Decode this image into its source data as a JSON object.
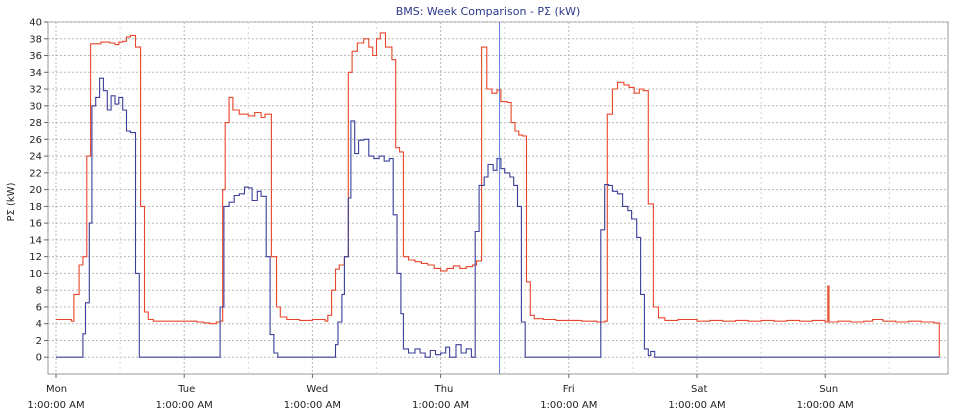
{
  "chart_data": {
    "type": "line",
    "title": "BMS: Week Comparison - PΣ (kW)",
    "ylabel": "PΣ (kW)",
    "xlabel": "",
    "ylim": [
      -2,
      40
    ],
    "yticks": [
      0,
      2,
      4,
      6,
      8,
      10,
      12,
      14,
      16,
      18,
      20,
      22,
      24,
      26,
      28,
      30,
      32,
      34,
      36,
      38,
      40
    ],
    "xlim": [
      0,
      7
    ],
    "xtick_positions": [
      0,
      1,
      2,
      3,
      4,
      5,
      6
    ],
    "xtick_labels": [
      {
        "day": "Mon",
        "time": "1:00:00 AM"
      },
      {
        "day": "Tue",
        "time": "1:00:00 AM"
      },
      {
        "day": "Wed",
        "time": "1:00:00 AM"
      },
      {
        "day": "Thu",
        "time": "1:00:00 AM"
      },
      {
        "day": "Fri",
        "time": "1:00:00 AM"
      },
      {
        "day": "Sat",
        "time": "1:00:00 AM"
      },
      {
        "day": "Sun",
        "time": "1:00:00 AM"
      }
    ],
    "grid": true,
    "cursor_x": 3.46,
    "series": [
      {
        "color": "#e8462a",
        "step": true,
        "points": [
          [
            0,
            4.5
          ],
          [
            0.12,
            4.3
          ],
          [
            0.14,
            7.5
          ],
          [
            0.18,
            11
          ],
          [
            0.21,
            12
          ],
          [
            0.24,
            24
          ],
          [
            0.27,
            37.4
          ],
          [
            0.35,
            37.6
          ],
          [
            0.42,
            37.5
          ],
          [
            0.46,
            37.3
          ],
          [
            0.49,
            37.6
          ],
          [
            0.52,
            37.7
          ],
          [
            0.55,
            38.2
          ],
          [
            0.58,
            38.4
          ],
          [
            0.62,
            37
          ],
          [
            0.66,
            18
          ],
          [
            0.69,
            5.4
          ],
          [
            0.72,
            4.5
          ],
          [
            0.76,
            4.3
          ],
          [
            0.9,
            4.3
          ],
          [
            1.1,
            4.2
          ],
          [
            1.15,
            4.1
          ],
          [
            1.2,
            4.0
          ],
          [
            1.25,
            4.2
          ],
          [
            1.28,
            4.3
          ],
          [
            1.3,
            20
          ],
          [
            1.32,
            28
          ],
          [
            1.35,
            31
          ],
          [
            1.38,
            29.5
          ],
          [
            1.43,
            29
          ],
          [
            1.5,
            28.8
          ],
          [
            1.55,
            29.2
          ],
          [
            1.6,
            28.6
          ],
          [
            1.63,
            29
          ],
          [
            1.68,
            12
          ],
          [
            1.72,
            6
          ],
          [
            1.75,
            4.8
          ],
          [
            1.8,
            4.5
          ],
          [
            1.9,
            4.4
          ],
          [
            2,
            4.5
          ],
          [
            2.1,
            4.3
          ],
          [
            2.12,
            5
          ],
          [
            2.15,
            8
          ],
          [
            2.18,
            10.5
          ],
          [
            2.21,
            11
          ],
          [
            2.25,
            12
          ],
          [
            2.28,
            34
          ],
          [
            2.31,
            36.5
          ],
          [
            2.35,
            37.5
          ],
          [
            2.4,
            38
          ],
          [
            2.44,
            37
          ],
          [
            2.47,
            36
          ],
          [
            2.5,
            38
          ],
          [
            2.53,
            38.7
          ],
          [
            2.57,
            37
          ],
          [
            2.62,
            35.5
          ],
          [
            2.65,
            25
          ],
          [
            2.68,
            24.5
          ],
          [
            2.71,
            12
          ],
          [
            2.75,
            11.6
          ],
          [
            2.8,
            11.4
          ],
          [
            2.85,
            11.2
          ],
          [
            2.9,
            11
          ],
          [
            2.95,
            10.6
          ],
          [
            3.0,
            10.3
          ],
          [
            3.05,
            10.6
          ],
          [
            3.1,
            10.9
          ],
          [
            3.15,
            10.6
          ],
          [
            3.2,
            10.8
          ],
          [
            3.25,
            11
          ],
          [
            3.28,
            11.5
          ],
          [
            3.32,
            37
          ],
          [
            3.36,
            32
          ],
          [
            3.4,
            31.5
          ],
          [
            3.44,
            31.9
          ],
          [
            3.47,
            30.5
          ],
          [
            3.52,
            30.4
          ],
          [
            3.55,
            28
          ],
          [
            3.58,
            27
          ],
          [
            3.61,
            26.5
          ],
          [
            3.64,
            26.4
          ],
          [
            3.67,
            9
          ],
          [
            3.7,
            5
          ],
          [
            3.73,
            4.6
          ],
          [
            3.8,
            4.5
          ],
          [
            3.9,
            4.4
          ],
          [
            4,
            4.4
          ],
          [
            4.1,
            4.3
          ],
          [
            4.22,
            4.2
          ],
          [
            4.28,
            4.3
          ],
          [
            4.3,
            29
          ],
          [
            4.34,
            32
          ],
          [
            4.38,
            32.8
          ],
          [
            4.43,
            32.5
          ],
          [
            4.47,
            32.2
          ],
          [
            4.51,
            31.5
          ],
          [
            4.55,
            32
          ],
          [
            4.58,
            31.8
          ],
          [
            4.62,
            18.3
          ],
          [
            4.66,
            6
          ],
          [
            4.7,
            4.7
          ],
          [
            4.75,
            4.4
          ],
          [
            4.85,
            4.5
          ],
          [
            5,
            4.3
          ],
          [
            5.1,
            4.4
          ],
          [
            5.2,
            4.3
          ],
          [
            5.3,
            4.4
          ],
          [
            5.4,
            4.3
          ],
          [
            5.5,
            4.4
          ],
          [
            5.6,
            4.3
          ],
          [
            5.7,
            4.4
          ],
          [
            5.8,
            4.3
          ],
          [
            5.9,
            4.4
          ],
          [
            6.0,
            4.2
          ],
          [
            6.02,
            8.5
          ],
          [
            6.03,
            4.2
          ],
          [
            6.1,
            4.3
          ],
          [
            6.2,
            4.2
          ],
          [
            6.3,
            4.3
          ],
          [
            6.37,
            4.5
          ],
          [
            6.45,
            4.3
          ],
          [
            6.55,
            4.2
          ],
          [
            6.65,
            4.3
          ],
          [
            6.75,
            4.2
          ],
          [
            6.85,
            4.1
          ],
          [
            6.89,
            0
          ]
        ]
      },
      {
        "color": "#3b3f9a",
        "step": true,
        "points": [
          [
            0,
            0
          ],
          [
            0.19,
            0
          ],
          [
            0.21,
            2.8
          ],
          [
            0.23,
            6.5
          ],
          [
            0.26,
            16
          ],
          [
            0.28,
            30
          ],
          [
            0.31,
            31
          ],
          [
            0.34,
            33.3
          ],
          [
            0.37,
            31.8
          ],
          [
            0.4,
            29.5
          ],
          [
            0.43,
            31.2
          ],
          [
            0.46,
            30.2
          ],
          [
            0.49,
            31
          ],
          [
            0.52,
            29.5
          ],
          [
            0.55,
            27
          ],
          [
            0.58,
            26.8
          ],
          [
            0.62,
            10
          ],
          [
            0.65,
            0
          ],
          [
            0.8,
            0
          ],
          [
            1.0,
            0
          ],
          [
            1.1,
            0
          ],
          [
            1.2,
            0
          ],
          [
            1.25,
            0
          ],
          [
            1.28,
            6
          ],
          [
            1.31,
            18
          ],
          [
            1.35,
            18.5
          ],
          [
            1.39,
            19.3
          ],
          [
            1.43,
            19.5
          ],
          [
            1.47,
            20.3
          ],
          [
            1.5,
            20.2
          ],
          [
            1.53,
            18.7
          ],
          [
            1.57,
            19.8
          ],
          [
            1.6,
            19.2
          ],
          [
            1.64,
            12
          ],
          [
            1.67,
            2.7
          ],
          [
            1.7,
            0.5
          ],
          [
            1.73,
            0
          ],
          [
            1.9,
            0
          ],
          [
            2.1,
            0
          ],
          [
            2.15,
            0
          ],
          [
            2.18,
            1.5
          ],
          [
            2.2,
            4.2
          ],
          [
            2.23,
            7.5
          ],
          [
            2.25,
            12
          ],
          [
            2.28,
            19
          ],
          [
            2.3,
            28.2
          ],
          [
            2.33,
            24.3
          ],
          [
            2.36,
            25.9
          ],
          [
            2.4,
            26
          ],
          [
            2.44,
            24
          ],
          [
            2.48,
            23.7
          ],
          [
            2.52,
            24
          ],
          [
            2.56,
            23.4
          ],
          [
            2.6,
            23.7
          ],
          [
            2.63,
            17
          ],
          [
            2.66,
            10
          ],
          [
            2.69,
            5.2
          ],
          [
            2.71,
            1
          ],
          [
            2.75,
            0.5
          ],
          [
            2.8,
            1
          ],
          [
            2.84,
            0.5
          ],
          [
            2.88,
            0
          ],
          [
            2.92,
            0.8
          ],
          [
            2.96,
            0.3
          ],
          [
            3.0,
            0.5
          ],
          [
            3.04,
            1.2
          ],
          [
            3.07,
            0
          ],
          [
            3.12,
            1.5
          ],
          [
            3.16,
            0.5
          ],
          [
            3.2,
            1
          ],
          [
            3.24,
            0
          ],
          [
            3.27,
            15
          ],
          [
            3.3,
            20.5
          ],
          [
            3.34,
            21.5
          ],
          [
            3.37,
            23
          ],
          [
            3.41,
            22.3
          ],
          [
            3.44,
            23.7
          ],
          [
            3.47,
            22.5
          ],
          [
            3.5,
            22
          ],
          [
            3.54,
            21.5
          ],
          [
            3.57,
            20.5
          ],
          [
            3.6,
            18
          ],
          [
            3.63,
            4.2
          ],
          [
            3.66,
            0
          ],
          [
            3.8,
            0
          ],
          [
            4,
            0
          ],
          [
            4.1,
            0
          ],
          [
            4.22,
            0
          ],
          [
            4.25,
            15.2
          ],
          [
            4.28,
            20.6
          ],
          [
            4.31,
            20.5
          ],
          [
            4.34,
            19.8
          ],
          [
            4.38,
            19.5
          ],
          [
            4.42,
            18
          ],
          [
            4.46,
            17.5
          ],
          [
            4.49,
            16.5
          ],
          [
            4.53,
            14.3
          ],
          [
            4.56,
            7.5
          ],
          [
            4.59,
            1
          ],
          [
            4.62,
            0.2
          ],
          [
            4.64,
            0.7
          ],
          [
            4.67,
            0
          ],
          [
            5,
            0
          ],
          [
            5.5,
            0
          ],
          [
            6,
            0
          ],
          [
            6.5,
            0
          ],
          [
            6.89,
            0
          ]
        ]
      }
    ]
  }
}
